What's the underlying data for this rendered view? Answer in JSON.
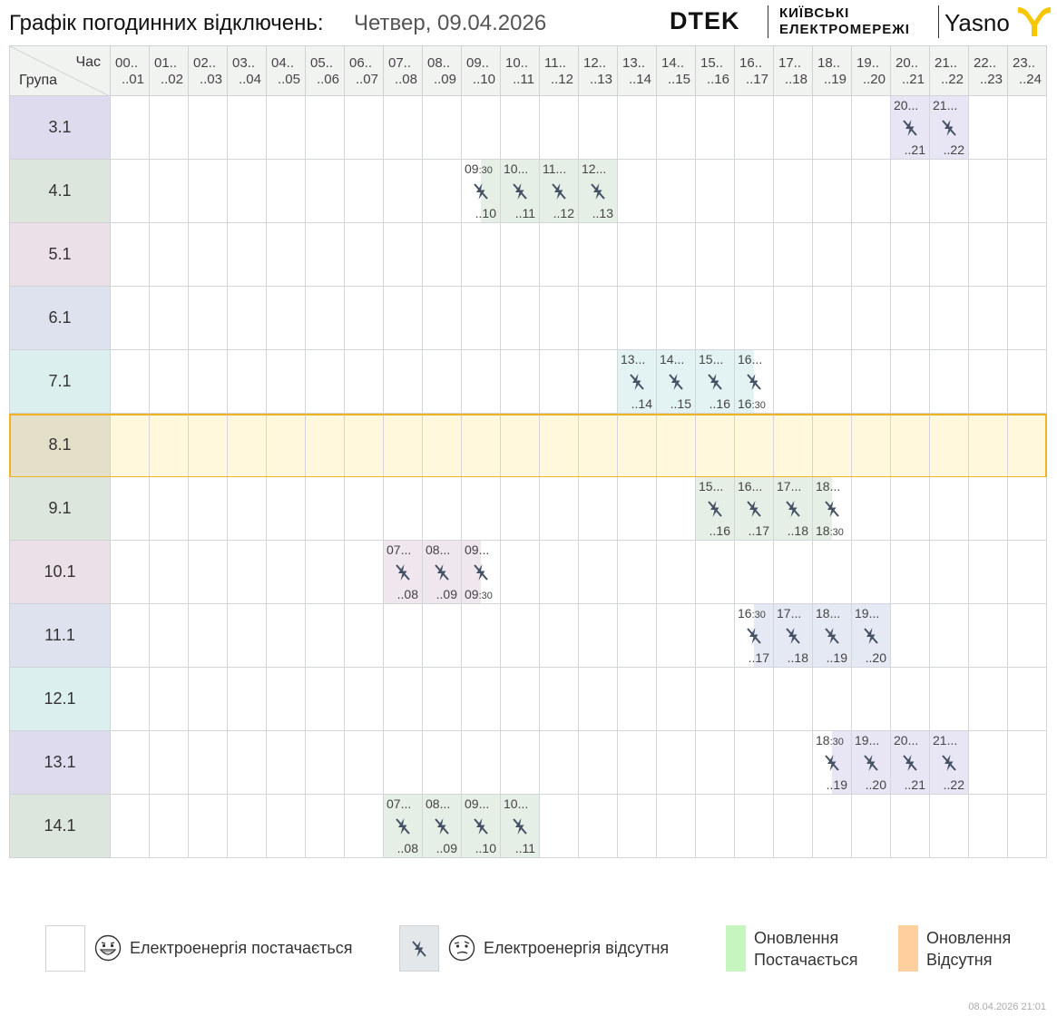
{
  "header": {
    "title": "Графік погодинних відключень:",
    "date": "Четвер, 09.04.2026"
  },
  "logos": {
    "dtek": "DTEK",
    "kyiv_line1": "КИЇВСЬКІ",
    "kyiv_line2": "ЕЛЕКТРОМЕРЕЖІ",
    "yasno": "Yasno"
  },
  "grid": {
    "corner_hour": "Час",
    "corner_group": "Група",
    "hours": [
      {
        "start": "00..",
        "end": "..01"
      },
      {
        "start": "01..",
        "end": "..02"
      },
      {
        "start": "02..",
        "end": "..03"
      },
      {
        "start": "03..",
        "end": "..04"
      },
      {
        "start": "04..",
        "end": "..05"
      },
      {
        "start": "05..",
        "end": "..06"
      },
      {
        "start": "06..",
        "end": "..07"
      },
      {
        "start": "07..",
        "end": "..08"
      },
      {
        "start": "08..",
        "end": "..09"
      },
      {
        "start": "09..",
        "end": "..10"
      },
      {
        "start": "10..",
        "end": "..11"
      },
      {
        "start": "11..",
        "end": "..12"
      },
      {
        "start": "12..",
        "end": "..13"
      },
      {
        "start": "13..",
        "end": "..14"
      },
      {
        "start": "14..",
        "end": "..15"
      },
      {
        "start": "15..",
        "end": "..16"
      },
      {
        "start": "16..",
        "end": "..17"
      },
      {
        "start": "17..",
        "end": "..18"
      },
      {
        "start": "18..",
        "end": "..19"
      },
      {
        "start": "19..",
        "end": "..20"
      },
      {
        "start": "20..",
        "end": "..21"
      },
      {
        "start": "21..",
        "end": "..22"
      },
      {
        "start": "22..",
        "end": "..23"
      },
      {
        "start": "23..",
        "end": "..24"
      }
    ],
    "highlighted_group": "8.1",
    "groups": [
      {
        "name": "3.1",
        "color": "#dedbef",
        "off_color": "#e8e6f5",
        "off": [
          {
            "h": 20,
            "part": "full",
            "start": "20...",
            "end": "..21"
          },
          {
            "h": 21,
            "part": "full",
            "start": "21...",
            "end": "..22"
          }
        ]
      },
      {
        "name": "4.1",
        "color": "#dde6dc",
        "off_color": "#e6efe5",
        "off": [
          {
            "h": 9,
            "part": "second",
            "start": "09",
            "start_min": ":30",
            "end": "..10"
          },
          {
            "h": 10,
            "part": "full",
            "start": "10...",
            "end": "..11"
          },
          {
            "h": 11,
            "part": "full",
            "start": "11...",
            "end": "..12"
          },
          {
            "h": 12,
            "part": "full",
            "start": "12...",
            "end": "..13"
          }
        ]
      },
      {
        "name": "5.1",
        "color": "#ebdfe8",
        "off_color": "#efe6ee",
        "off": []
      },
      {
        "name": "6.1",
        "color": "#dde2ee",
        "off_color": "#e5e9f3",
        "off": []
      },
      {
        "name": "7.1",
        "color": "#dcefef",
        "off_color": "#e3f3f3",
        "off": [
          {
            "h": 13,
            "part": "full",
            "start": "13...",
            "end": "..14"
          },
          {
            "h": 14,
            "part": "full",
            "start": "14...",
            "end": "..15"
          },
          {
            "h": 15,
            "part": "full",
            "start": "15...",
            "end": "..16"
          },
          {
            "h": 16,
            "part": "first",
            "start": "16...",
            "end": "16",
            "end_min": ":30"
          }
        ]
      },
      {
        "name": "8.1",
        "color": "#e4dfc9",
        "off_color": "#fff8dc",
        "off": []
      },
      {
        "name": "9.1",
        "color": "#dde6dc",
        "off_color": "#e6efe5",
        "off": [
          {
            "h": 15,
            "part": "full",
            "start": "15...",
            "end": "..16"
          },
          {
            "h": 16,
            "part": "full",
            "start": "16...",
            "end": "..17"
          },
          {
            "h": 17,
            "part": "full",
            "start": "17...",
            "end": "..18"
          },
          {
            "h": 18,
            "part": "first",
            "start": "18...",
            "end": "18",
            "end_min": ":30"
          }
        ]
      },
      {
        "name": "10.1",
        "color": "#ebdfe8",
        "off_color": "#efe6ee",
        "off": [
          {
            "h": 7,
            "part": "full",
            "start": "07...",
            "end": "..08"
          },
          {
            "h": 8,
            "part": "full",
            "start": "08...",
            "end": "..09"
          },
          {
            "h": 9,
            "part": "first",
            "start": "09...",
            "end": "09",
            "end_min": ":30"
          }
        ]
      },
      {
        "name": "11.1",
        "color": "#dde2ee",
        "off_color": "#e5e9f3",
        "off": [
          {
            "h": 16,
            "part": "second",
            "start": "16",
            "start_min": ":30",
            "end": "..17"
          },
          {
            "h": 17,
            "part": "full",
            "start": "17...",
            "end": "..18"
          },
          {
            "h": 18,
            "part": "full",
            "start": "18...",
            "end": "..19"
          },
          {
            "h": 19,
            "part": "full",
            "start": "19...",
            "end": "..20"
          }
        ]
      },
      {
        "name": "12.1",
        "color": "#dcefef",
        "off_color": "#e3f3f3",
        "off": []
      },
      {
        "name": "13.1",
        "color": "#dedbef",
        "off_color": "#e8e6f5",
        "off": [
          {
            "h": 18,
            "part": "second",
            "start": "18",
            "start_min": ":30",
            "end": "..19"
          },
          {
            "h": 19,
            "part": "full",
            "start": "19...",
            "end": "..20"
          },
          {
            "h": 20,
            "part": "full",
            "start": "20...",
            "end": "..21"
          },
          {
            "h": 21,
            "part": "full",
            "start": "21...",
            "end": "..22"
          }
        ]
      },
      {
        "name": "14.1",
        "color": "#dde6dc",
        "off_color": "#e6efe5",
        "off": [
          {
            "h": 7,
            "part": "full",
            "start": "07...",
            "end": "..08"
          },
          {
            "h": 8,
            "part": "full",
            "start": "08...",
            "end": "..09"
          },
          {
            "h": 9,
            "part": "full",
            "start": "09...",
            "end": "..10"
          },
          {
            "h": 10,
            "part": "full",
            "start": "10...",
            "end": "..11"
          }
        ]
      }
    ]
  },
  "legend": {
    "power_on": "Електроенергія постачається",
    "power_off": "Електроенергія відсутня",
    "update_on_1": "Оновлення",
    "update_on_2": "Постачається",
    "update_off_1": "Оновлення",
    "update_off_2": "Відсутня",
    "update_on_color": "#c6f5c0",
    "update_off_color": "#ffcf9e"
  },
  "footer": {
    "timestamp": "08.04.2026   21:01"
  }
}
